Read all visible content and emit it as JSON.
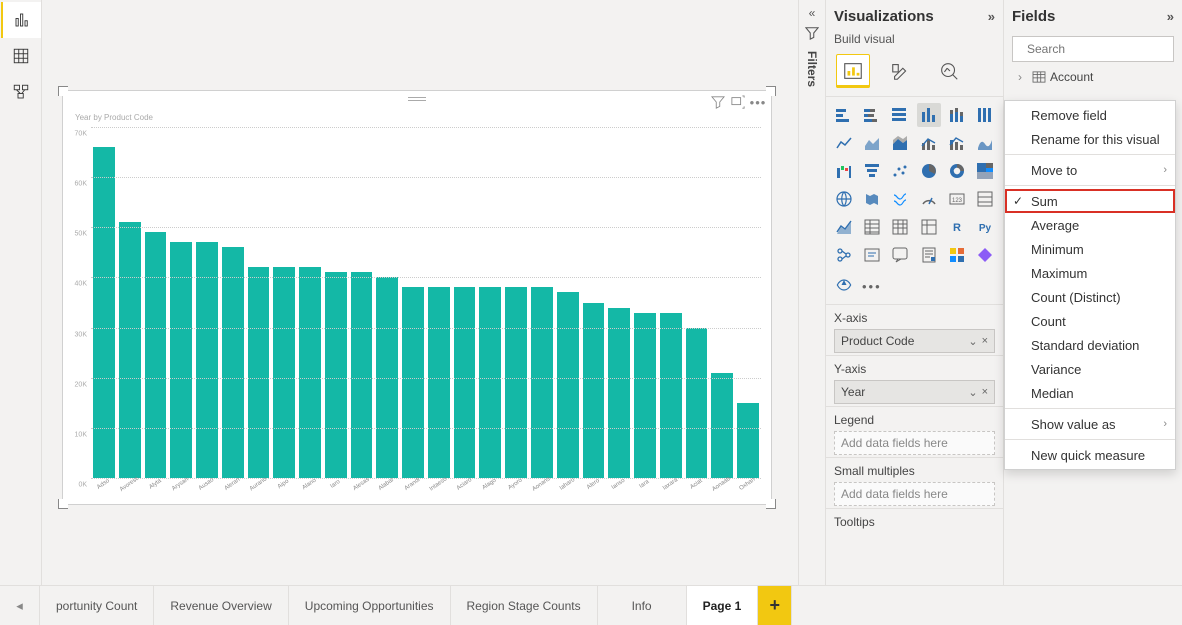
{
  "panes": {
    "visualizations": {
      "title": "Visualizations",
      "subtitle": "Build visual"
    },
    "fields": {
      "title": "Fields",
      "search_placeholder": "Search",
      "first_table": "Account"
    },
    "filters": {
      "label": "Filters"
    }
  },
  "chart": {
    "title": "Year by Product Code",
    "bar_color": "#14b8a6",
    "y": {
      "max": 70,
      "ticks": [
        0,
        10,
        20,
        30,
        40,
        50,
        60,
        70
      ],
      "tick_suffix": "K"
    },
    "categories": [
      "Adso",
      "Avoresc",
      "Alyta",
      "Arysan",
      "Ausao",
      "Aleran",
      "Aurano",
      "Aipo",
      "Alano",
      "Iaro",
      "Alesas",
      "Alabar",
      "Arandi",
      "Intaeso",
      "Aciaro",
      "Alago",
      "Ayoro",
      "Aonans",
      "Iaharo",
      "Alero",
      "Ianso",
      "Iara",
      "Iaxara",
      "Aciat",
      "Aonaab",
      "Oxhan"
    ],
    "values": [
      66,
      51,
      49,
      47,
      47,
      46,
      42,
      42,
      42,
      41,
      41,
      40,
      38,
      38,
      38,
      38,
      38,
      38,
      37,
      35,
      34,
      33,
      33,
      30,
      21,
      15
    ]
  },
  "wells": {
    "x_label": "X-axis",
    "x_field": "Product Code",
    "y_label": "Y-axis",
    "y_field": "Year",
    "legend_label": "Legend",
    "legend_placeholder": "Add data fields here",
    "sm_label": "Small multiples",
    "sm_placeholder": "Add data fields here",
    "tooltips_label": "Tooltips"
  },
  "context_menu": {
    "items_top": [
      "Remove field",
      "Rename for this visual"
    ],
    "move_to": "Move to",
    "agg_selected": "Sum",
    "aggs": [
      "Sum",
      "Average",
      "Minimum",
      "Maximum",
      "Count (Distinct)",
      "Count",
      "Standard deviation",
      "Variance",
      "Median"
    ],
    "show_as": "Show value as",
    "new_measure": "New quick measure"
  },
  "tabs": {
    "items": [
      "portunity Count",
      "Revenue Overview",
      "Upcoming Opportunities",
      "Region Stage Counts",
      "Info",
      "Page 1"
    ],
    "active": "Page 1"
  }
}
